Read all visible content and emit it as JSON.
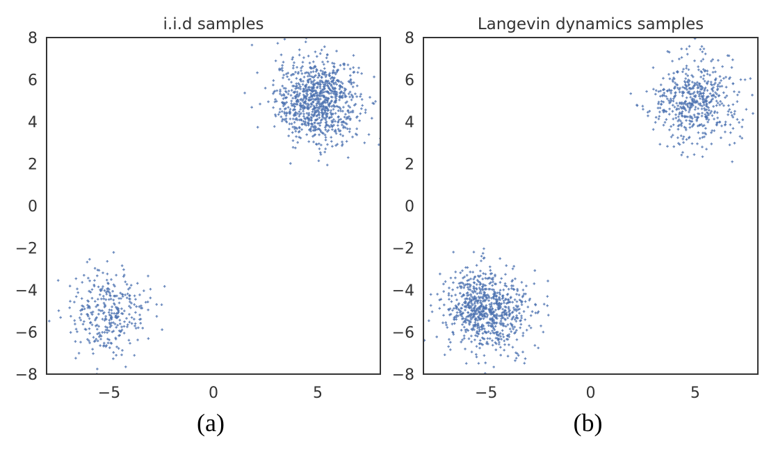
{
  "point_color": "#4c72b0",
  "chart_data": [
    {
      "type": "scatter",
      "title": "i.i.d samples",
      "caption": "(a)",
      "xlabel": "",
      "ylabel": "",
      "xlim": [
        -8,
        8
      ],
      "ylim": [
        -8,
        8
      ],
      "xticks": [
        -5,
        0,
        5
      ],
      "xtick_labels": [
        "−5",
        "0",
        "5"
      ],
      "yticks": [
        8,
        6,
        4,
        2,
        0,
        -2,
        -4,
        -6,
        -8
      ],
      "ytick_labels": [
        "8",
        "6",
        "4",
        "2",
        "0",
        "−2",
        "−4",
        "−6",
        "−8"
      ],
      "grid": false,
      "marker": "+",
      "series": [
        {
          "name": "cluster upper-right",
          "center": [
            5,
            5
          ],
          "std": 1.0,
          "count": 900
        },
        {
          "name": "cluster lower-left",
          "center": [
            -5,
            -5
          ],
          "std": 1.0,
          "count": 320
        }
      ]
    },
    {
      "type": "scatter",
      "title": "Langevin dynamics samples",
      "caption": "(b)",
      "xlabel": "",
      "ylabel": "",
      "xlim": [
        -8,
        8
      ],
      "ylim": [
        -8,
        8
      ],
      "xticks": [
        -5,
        0,
        5
      ],
      "xtick_labels": [
        "−5",
        "0",
        "5"
      ],
      "yticks": [
        8,
        6,
        4,
        2,
        0,
        -2,
        -4,
        -6,
        -8
      ],
      "ytick_labels": [
        "8",
        "6",
        "4",
        "2",
        "0",
        "−2",
        "−4",
        "−6",
        "−8"
      ],
      "grid": false,
      "marker": "+",
      "series": [
        {
          "name": "cluster upper-right",
          "center": [
            5,
            5
          ],
          "std": 1.0,
          "count": 520
        },
        {
          "name": "cluster lower-left",
          "center": [
            -5,
            -5
          ],
          "std": 1.0,
          "count": 780
        }
      ]
    }
  ]
}
